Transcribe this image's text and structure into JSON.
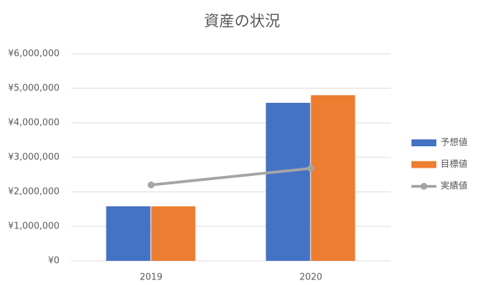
{
  "chart_data": {
    "type": "combo",
    "title": "資産の状況",
    "categories": [
      "2019",
      "2020"
    ],
    "series": [
      {
        "name": "予想値",
        "type": "bar",
        "color": "#4472c4",
        "values": [
          1580000,
          4580000
        ]
      },
      {
        "name": "目標値",
        "type": "bar",
        "color": "#ed7d31",
        "values": [
          1580000,
          4800000
        ]
      },
      {
        "name": "実績値",
        "type": "line",
        "color": "#a5a5a5",
        "values": [
          2200000,
          2680000
        ]
      }
    ],
    "ylim": [
      0,
      6000000
    ],
    "yticks": [
      {
        "value": 0,
        "label": "¥0"
      },
      {
        "value": 1000000,
        "label": "¥1,000,000"
      },
      {
        "value": 2000000,
        "label": "¥2,000,000"
      },
      {
        "value": 3000000,
        "label": "¥3,000,000"
      },
      {
        "value": 4000000,
        "label": "¥4,000,000"
      },
      {
        "value": 5000000,
        "label": "¥5,000,000"
      },
      {
        "value": 6000000,
        "label": "¥6,000,000"
      }
    ],
    "grid": true,
    "legend": "right"
  }
}
